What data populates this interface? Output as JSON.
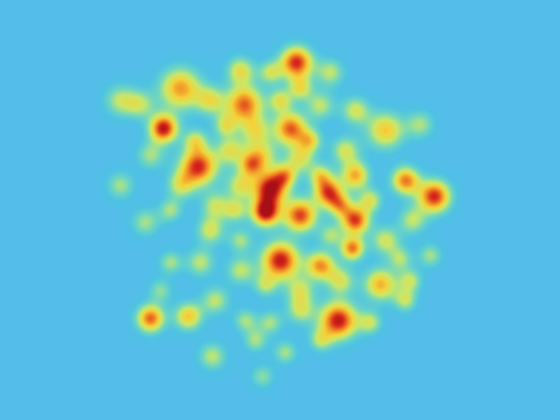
{
  "image": {
    "kind": "density-heatmap",
    "background_color": "#54bdea",
    "colormap": [
      "#54bdea",
      "#4fc3e3",
      "#6fd6c0",
      "#c8e86a",
      "#f4d33a",
      "#f08a24",
      "#d6261c",
      "#a50f15"
    ]
  }
}
